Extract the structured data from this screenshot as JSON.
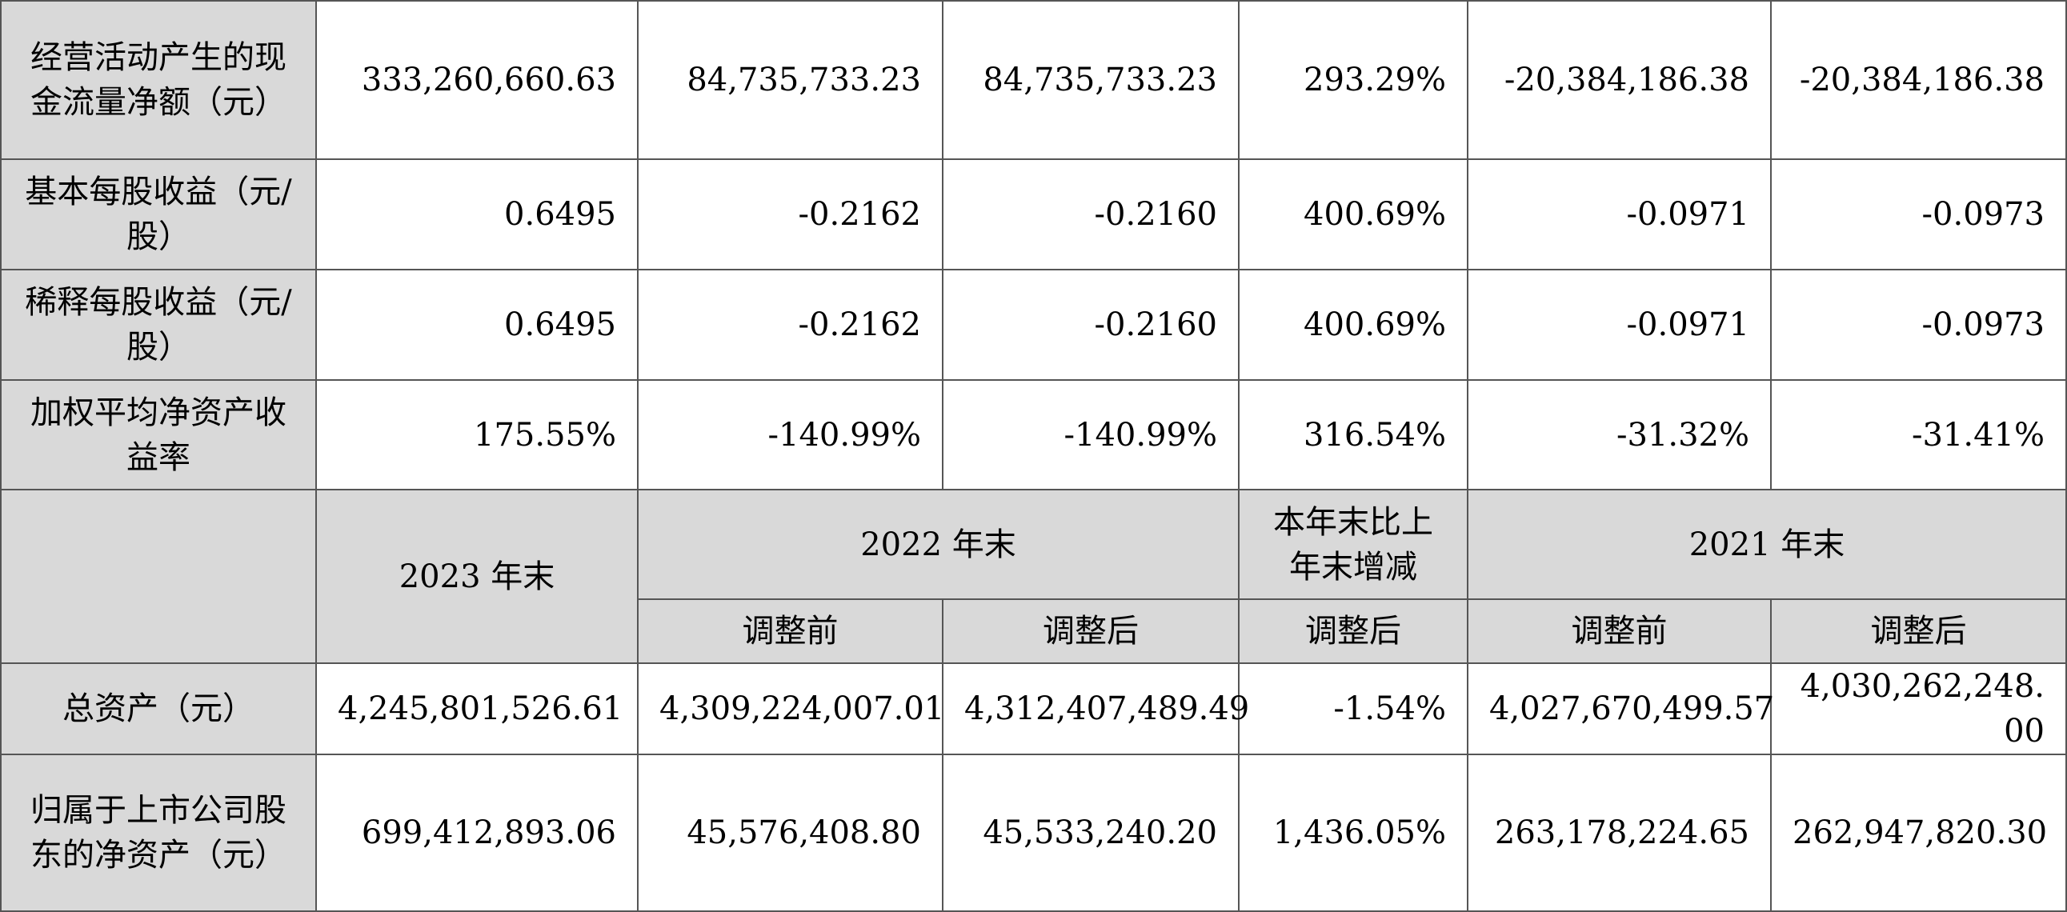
{
  "top_rows": [
    {
      "label": "经营活动产生的现金流量净额（元）",
      "values": [
        "333,260,660.63",
        "84,735,733.23",
        "84,735,733.23",
        "293.29%",
        "-20,384,186.38",
        "-20,384,186.38"
      ]
    },
    {
      "label": "基本每股收益（元/股）",
      "values": [
        "0.6495",
        "-0.2162",
        "-0.2160",
        "400.69%",
        "-0.0971",
        "-0.0973"
      ]
    },
    {
      "label": "稀释每股收益（元/股）",
      "values": [
        "0.6495",
        "-0.2162",
        "-0.2160",
        "400.69%",
        "-0.0971",
        "-0.0973"
      ]
    },
    {
      "label": "加权平均净资产收益率",
      "values": [
        "175.55%",
        "-140.99%",
        "-140.99%",
        "316.54%",
        "-31.32%",
        "-31.41%"
      ]
    }
  ],
  "header": {
    "col_2023": "2023 年末",
    "col_2022": "2022 年末",
    "col_change": "本年末比上年末增减",
    "col_2021": "2021 年末",
    "sub_before": "调整前",
    "sub_after": "调整后"
  },
  "bottom_rows": [
    {
      "label": "总资产（元）",
      "values": [
        "4,245,801,526.61",
        "4,309,224,007.01",
        "4,312,407,489.49",
        "-1.54%",
        "4,027,670,499.57",
        "4,030,262,248.00"
      ]
    },
    {
      "label": "归属于上市公司股东的净资产（元）",
      "values": [
        "699,412,893.06",
        "45,576,408.80",
        "45,533,240.20",
        "1,436.05%",
        "263,178,224.65",
        "262,947,820.30"
      ]
    }
  ]
}
